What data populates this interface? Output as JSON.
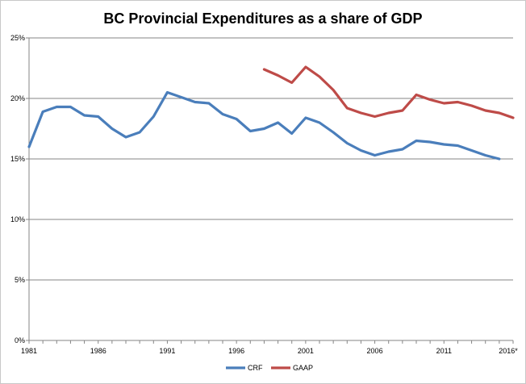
{
  "chart_data": {
    "type": "line",
    "title": "BC Provincial Expenditures as a share of GDP",
    "xlabel": "",
    "ylabel": "",
    "x": [
      1981,
      1982,
      1983,
      1984,
      1985,
      1986,
      1987,
      1988,
      1989,
      1990,
      1991,
      1992,
      1993,
      1994,
      1995,
      1996,
      1997,
      1998,
      1999,
      2000,
      2001,
      2002,
      2003,
      2004,
      2005,
      2006,
      2007,
      2008,
      2009,
      2010,
      2011,
      2012,
      2013,
      2014,
      2015,
      2016
    ],
    "x_tick_labels": [
      "1981",
      "1986",
      "1991",
      "1996",
      "2001",
      "2006",
      "2011",
      "2016*"
    ],
    "y_tick_labels": [
      "0%",
      "5%",
      "10%",
      "15%",
      "20%",
      "25%"
    ],
    "ylim": [
      0,
      25
    ],
    "xlim": [
      1981,
      2016
    ],
    "grid": "horizontal",
    "legend_position": "bottom",
    "series": [
      {
        "name": "CRF",
        "color": "#4a7ebb",
        "values": [
          16.0,
          18.9,
          19.3,
          19.3,
          18.6,
          18.5,
          17.5,
          16.8,
          17.2,
          18.5,
          20.5,
          20.1,
          19.7,
          19.6,
          18.7,
          18.3,
          17.3,
          17.5,
          18.0,
          17.1,
          18.4,
          18.0,
          17.2,
          16.3,
          15.7,
          15.3,
          15.6,
          15.8,
          16.5,
          16.4,
          16.2,
          16.1,
          15.7,
          15.3,
          15.0,
          null
        ]
      },
      {
        "name": "GAAP",
        "color": "#be4b48",
        "values": [
          null,
          null,
          null,
          null,
          null,
          null,
          null,
          null,
          null,
          null,
          null,
          null,
          null,
          null,
          null,
          null,
          null,
          22.4,
          21.9,
          21.3,
          22.6,
          21.8,
          20.7,
          19.2,
          18.8,
          18.5,
          18.8,
          19.0,
          20.3,
          19.9,
          19.6,
          19.7,
          19.4,
          19.0,
          18.8,
          18.4
        ]
      }
    ]
  }
}
